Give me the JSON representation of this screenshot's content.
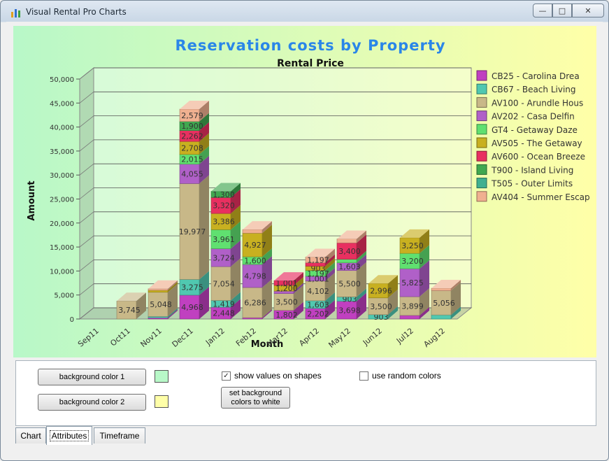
{
  "window": {
    "title": "Visual Rental Pro Charts",
    "min_icon": "minimize-icon",
    "max_icon": "maximize-icon",
    "close_icon": "close-icon"
  },
  "chart_data": {
    "type": "bar",
    "stacked": true,
    "title": "Reservation costs by Property",
    "subtitle": "Rental Price",
    "xlabel": "Month",
    "ylabel": "Amount",
    "ylim": [
      0,
      50000
    ],
    "yticks": [
      "0",
      "5,000",
      "10,000",
      "15,000",
      "20,000",
      "25,000",
      "30,000",
      "35,000",
      "40,000",
      "45,000",
      "50,000"
    ],
    "categories": [
      "Sep11",
      "Oct11",
      "Nov11",
      "Dec11",
      "Jan12",
      "Feb12",
      "Mar12",
      "Apr12",
      "May12",
      "Jun12",
      "Jul12",
      "Aug12"
    ],
    "background": [
      "#b8f8c8",
      "#ffffa8"
    ],
    "series": [
      {
        "name": "CB25 - Carolina Drea",
        "color": "#c040c0",
        "values": [
          0,
          0,
          248,
          4968,
          2448,
          280,
          1802,
          2202,
          3698,
          0,
          749,
          0
        ]
      },
      {
        "name": "CB67 - Beach Living",
        "color": "#50c8b0",
        "values": [
          0,
          0,
          282,
          3275,
          1419,
          0,
          0,
          1603,
          903,
          903,
          0,
          847
        ]
      },
      {
        "name": "AV100 - Arundle Hous",
        "color": "#c8b888",
        "values": [
          0,
          3745,
          5048,
          19977,
          7054,
          6286,
          3500,
          4102,
          5500,
          3500,
          3899,
          5056
        ]
      },
      {
        "name": "AV202 - Casa Delfin",
        "color": "#b060c8",
        "values": [
          0,
          0,
          0,
          4055,
          3724,
          4798,
          500,
          1001,
          1603,
          0,
          5825,
          0
        ]
      },
      {
        "name": "GT4 - Getaway Daze",
        "color": "#60e070",
        "values": [
          0,
          0,
          0,
          2015,
          3961,
          1600,
          0,
          1197,
          749,
          0,
          3200,
          0
        ]
      },
      {
        "name": "AV505 - The Getaway",
        "color": "#c8b020",
        "values": [
          0,
          0,
          411,
          2708,
          3386,
          4927,
          1200,
          903,
          0,
          2996,
          3250,
          0
        ]
      },
      {
        "name": "AV600 - Ocean Breeze",
        "color": "#e83060",
        "values": [
          0,
          0,
          0,
          2262,
          3320,
          0,
          1001,
          700,
          3400,
          0,
          0,
          0
        ]
      },
      {
        "name": "T900 - Island Living",
        "color": "#40a850",
        "values": [
          0,
          0,
          0,
          1900,
          1300,
          0,
          0,
          0,
          0,
          0,
          0,
          0
        ]
      },
      {
        "name": "T505 - Outer Limits",
        "color": "#40b090",
        "values": [
          0,
          0,
          0,
          0,
          0,
          0,
          0,
          0,
          0,
          0,
          0,
          0
        ]
      },
      {
        "name": "AV404 - Summer Escap",
        "color": "#f0b090",
        "values": [
          0,
          0,
          314,
          2579,
          0,
          749,
          0,
          1197,
          847,
          0,
          0,
          520
        ]
      }
    ]
  },
  "controls": {
    "bg1_label": "background color 1",
    "bg2_label": "background color 2",
    "bg1_color": "#b8f8c8",
    "bg2_color": "#ffffa8",
    "show_values_label": "show values on shapes",
    "show_values_checked": true,
    "random_colors_label": "use random colors",
    "random_colors_checked": false,
    "white_bg_label": "set background colors to white"
  },
  "tabs": [
    {
      "label": "Chart",
      "active": false
    },
    {
      "label": "Attributes",
      "active": true
    },
    {
      "label": "Timeframe",
      "active": false
    }
  ]
}
